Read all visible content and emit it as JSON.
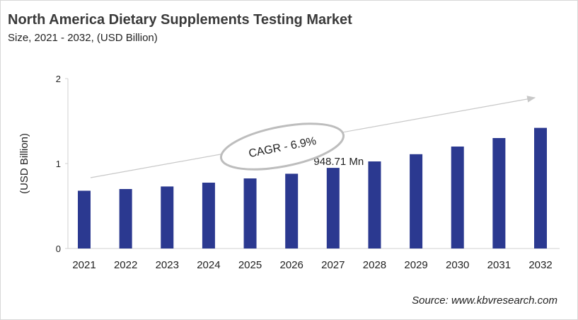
{
  "title": "North America Dietary Supplements Testing Market",
  "subtitle": "Size, 2021 - 2032, (USD Billion)",
  "source": "Source: www.kbvresearch.com",
  "chart_data": {
    "type": "bar",
    "title": "North America Dietary Supplements Testing Market",
    "subtitle": "Size, 2021 - 2032, (USD Billion)",
    "ylabel": "(USD Billion)",
    "xlabel": "",
    "categories": [
      "2021",
      "2022",
      "2023",
      "2024",
      "2025",
      "2026",
      "2027",
      "2028",
      "2029",
      "2030",
      "2031",
      "2032"
    ],
    "values": [
      0.68,
      0.7,
      0.73,
      0.775,
      0.825,
      0.88,
      0.949,
      1.025,
      1.11,
      1.2,
      1.3,
      1.42
    ],
    "ylim": [
      0,
      2
    ],
    "yticks": [
      "0",
      "1",
      "2"
    ],
    "grid": false,
    "bar_color": "#2B3990",
    "annotations": {
      "data_label": {
        "category": "2027",
        "text": "948.71 Mn"
      },
      "cagr": "CAGR - 6.9%"
    }
  }
}
